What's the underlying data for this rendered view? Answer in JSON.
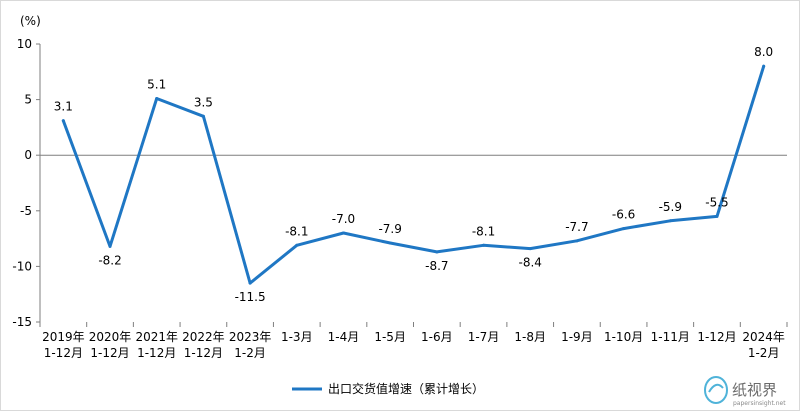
{
  "chart_data": {
    "type": "line",
    "unit_label": "(%)",
    "categories": [
      [
        "2019年",
        "1-12月"
      ],
      [
        "2020年",
        "1-12月"
      ],
      [
        "2021年",
        "1-12月"
      ],
      [
        "2022年",
        "1-12月"
      ],
      [
        "2023年",
        "1-2月"
      ],
      [
        "1-3月"
      ],
      [
        "1-4月"
      ],
      [
        "1-5月"
      ],
      [
        "1-6月"
      ],
      [
        "1-7月"
      ],
      [
        "1-8月"
      ],
      [
        "1-9月"
      ],
      [
        "1-10月"
      ],
      [
        "1-11月"
      ],
      [
        "1-12月"
      ],
      [
        "2024年",
        "1-2月"
      ]
    ],
    "series": [
      {
        "name": "出口交货值增速（累计增长）",
        "color": "#1f77c4",
        "values": [
          3.1,
          -8.2,
          5.1,
          3.5,
          -11.5,
          -8.1,
          -7.0,
          -7.9,
          -8.7,
          -8.1,
          -8.4,
          -7.7,
          -6.6,
          -5.9,
          -5.5,
          8.0
        ],
        "value_labels": [
          "3.1",
          "-8.2",
          "5.1",
          "3.5",
          "-11.5",
          "-8.1",
          "-7.0",
          "-7.9",
          "-8.7",
          "-8.1",
          "-8.4",
          "-7.7",
          "-6.6",
          "-5.9",
          "-5.5",
          "8.0"
        ]
      }
    ],
    "ylim": [
      -15,
      10
    ],
    "yticks": [
      10,
      5,
      0,
      -5,
      -10,
      -15
    ],
    "legend_position": "bottom-center",
    "grid": false
  },
  "watermark": {
    "text": "纸视界",
    "sub": "papersinsight.net"
  }
}
